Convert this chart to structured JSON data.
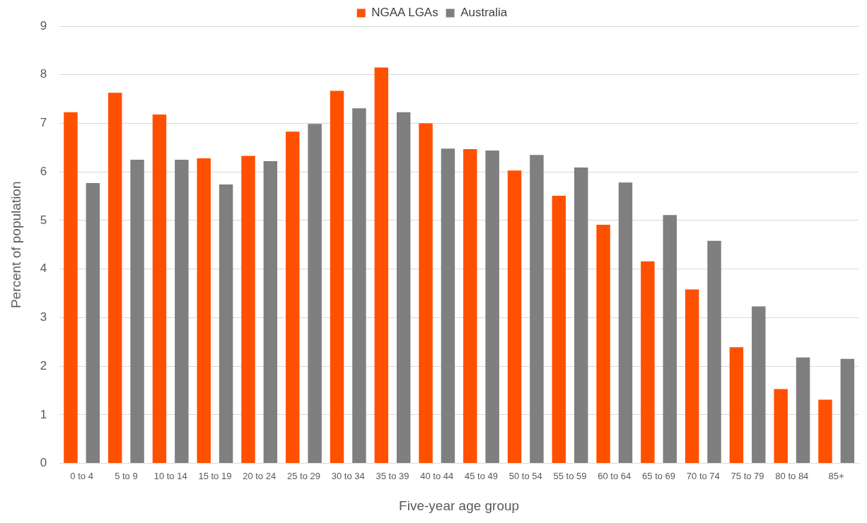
{
  "chart_data": {
    "type": "bar",
    "xlabel": "Five-year age group",
    "ylabel": "Percent of population",
    "categories": [
      "0 to 4",
      "5 to 9",
      "10 to 14",
      "15 to 19",
      "20 to 24",
      "25 to 29",
      "30 to 34",
      "35 to 39",
      "40 to 44",
      "45 to 49",
      "50 to 54",
      "55 to 59",
      "60 to 64",
      "65 to 69",
      "70 to 74",
      "75 to 79",
      "80 to 84",
      "85+"
    ],
    "series": [
      {
        "name": "NGAA LGAs",
        "color": "#ff5000",
        "values": [
          7.23,
          7.63,
          7.18,
          6.28,
          6.33,
          6.83,
          7.67,
          8.15,
          7.0,
          6.47,
          6.03,
          5.51,
          4.91,
          4.16,
          3.58,
          2.39,
          1.53,
          1.31
        ]
      },
      {
        "name": "Australia",
        "color": "#7f7f7f",
        "values": [
          5.77,
          6.25,
          6.25,
          5.74,
          6.22,
          6.99,
          7.31,
          7.23,
          6.48,
          6.44,
          6.35,
          6.09,
          5.78,
          5.11,
          4.58,
          3.23,
          2.18,
          2.15
        ]
      }
    ],
    "ylim": [
      0,
      9
    ],
    "yticks": [
      0,
      1,
      2,
      3,
      4,
      5,
      6,
      7,
      8,
      9
    ],
    "grid": "y",
    "legend": "top"
  }
}
